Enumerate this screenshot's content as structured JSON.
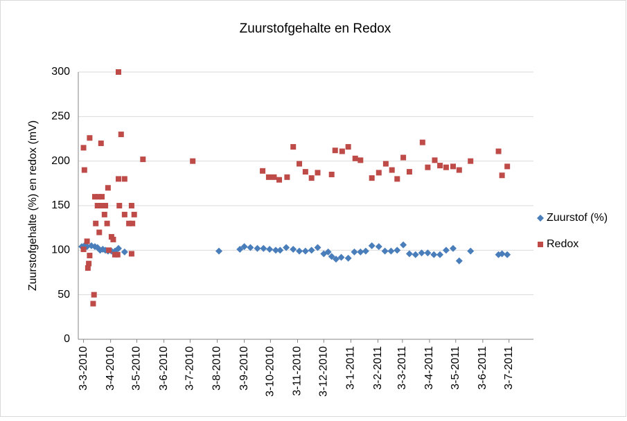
{
  "chart_data": {
    "type": "scatter",
    "title": "Zuurstofgehalte en Redox",
    "y_label": "Zuurstofgehalte (%) en redox (mV)",
    "xlim": [
      "2010-02-25",
      "2011-07-31"
    ],
    "ylim": [
      0,
      300
    ],
    "yticks": [
      0,
      50,
      100,
      150,
      200,
      250,
      300
    ],
    "grid": true,
    "legend": "right",
    "xticks": [
      {
        "value": "2010-03-03",
        "label": "3-3-2010"
      },
      {
        "value": "2010-04-03",
        "label": "3-4-2010"
      },
      {
        "value": "2010-05-03",
        "label": "3-5-2010"
      },
      {
        "value": "2010-06-03",
        "label": "3-6-2010"
      },
      {
        "value": "2010-07-03",
        "label": "3-7-2010"
      },
      {
        "value": "2010-08-03",
        "label": "3-8-2010"
      },
      {
        "value": "2010-09-03",
        "label": "3-9-2010"
      },
      {
        "value": "2010-10-03",
        "label": "3-10-2010"
      },
      {
        "value": "2010-11-03",
        "label": "3-11-2010"
      },
      {
        "value": "2010-12-03",
        "label": "3-12-2010"
      },
      {
        "value": "2011-01-03",
        "label": "3-1-2011"
      },
      {
        "value": "2011-02-03",
        "label": "3-2-2011"
      },
      {
        "value": "2011-03-03",
        "label": "3-3-2011"
      },
      {
        "value": "2011-04-03",
        "label": "3-4-2011"
      },
      {
        "value": "2011-05-03",
        "label": "3-5-2011"
      },
      {
        "value": "2011-06-03",
        "label": "3-6-2011"
      },
      {
        "value": "2011-07-03",
        "label": "3-7-2011"
      }
    ],
    "series": [
      {
        "name": "Zuurstof (%)",
        "color": "#4a7ebb",
        "marker": "diamond",
        "x": [
          "2010-03-01",
          "2010-03-05",
          "2010-03-07",
          "2010-03-12",
          "2010-03-16",
          "2010-03-19",
          "2010-03-22",
          "2010-03-25",
          "2010-03-28",
          "2010-03-31",
          "2010-04-04",
          "2010-04-08",
          "2010-04-12",
          "2010-04-19",
          "2010-08-05",
          "2010-08-29",
          "2010-09-03",
          "2010-09-10",
          "2010-09-18",
          "2010-09-25",
          "2010-10-02",
          "2010-10-09",
          "2010-10-14",
          "2010-10-21",
          "2010-10-29",
          "2010-11-05",
          "2010-11-12",
          "2010-11-19",
          "2010-11-26",
          "2010-12-03",
          "2010-12-08",
          "2010-12-12",
          "2010-12-17",
          "2010-12-23",
          "2010-12-31",
          "2011-01-07",
          "2011-01-14",
          "2011-01-20",
          "2011-01-27",
          "2011-02-04",
          "2011-02-11",
          "2011-02-18",
          "2011-02-25",
          "2011-03-04",
          "2011-03-11",
          "2011-03-18",
          "2011-03-25",
          "2011-04-01",
          "2011-04-08",
          "2011-04-15",
          "2011-04-22",
          "2011-04-30",
          "2011-05-07",
          "2011-05-20",
          "2011-06-21",
          "2011-06-25",
          "2011-07-01"
        ],
        "values": [
          104,
          106,
          104,
          105,
          104,
          103,
          100,
          101,
          100,
          99,
          99,
          99,
          102,
          98,
          99,
          101,
          104,
          103,
          102,
          102,
          101,
          100,
          100,
          103,
          101,
          99,
          99,
          100,
          103,
          96,
          98,
          93,
          90,
          92,
          91,
          98,
          98,
          99,
          105,
          104,
          99,
          99,
          100,
          106,
          96,
          95,
          97,
          97,
          95,
          95,
          100,
          102,
          88,
          99,
          95,
          96,
          95
        ]
      },
      {
        "name": "Redox",
        "color": "#be4b48",
        "marker": "square",
        "x": [
          "2010-03-03",
          "2010-03-04",
          "2010-03-03",
          "2010-03-07",
          "2010-03-08",
          "2010-03-09",
          "2010-03-10",
          "2010-03-10",
          "2010-03-14",
          "2010-03-15",
          "2010-03-16",
          "2010-03-17",
          "2010-03-19",
          "2010-03-20",
          "2010-03-21",
          "2010-03-23",
          "2010-03-24",
          "2010-03-24",
          "2010-03-27",
          "2010-03-28",
          "2010-03-30",
          "2010-03-31",
          "2010-04-01",
          "2010-04-04",
          "2010-04-06",
          "2010-04-08",
          "2010-04-11",
          "2010-04-12",
          "2010-04-12",
          "2010-04-13",
          "2010-04-15",
          "2010-04-19",
          "2010-04-19",
          "2010-04-24",
          "2010-04-27",
          "2010-04-28",
          "2010-04-30",
          "2010-04-27",
          "2010-05-10",
          "2010-07-06",
          "2010-09-24",
          "2010-10-01",
          "2010-10-07",
          "2010-10-13",
          "2010-10-22",
          "2010-10-29",
          "2010-11-05",
          "2010-11-12",
          "2010-11-19",
          "2010-11-26",
          "2010-12-12",
          "2010-12-16",
          "2010-12-24",
          "2010-12-31",
          "2011-01-08",
          "2011-01-14",
          "2011-01-27",
          "2011-02-04",
          "2011-02-12",
          "2011-02-19",
          "2011-02-25",
          "2011-03-04",
          "2011-03-11",
          "2011-03-26",
          "2011-04-01",
          "2011-04-09",
          "2011-04-15",
          "2011-04-22",
          "2011-04-30",
          "2011-05-07",
          "2011-05-20",
          "2011-06-21",
          "2011-06-25",
          "2011-07-01"
        ],
        "values": [
          215,
          190,
          101,
          110,
          80,
          85,
          94,
          226,
          40,
          50,
          160,
          130,
          150,
          160,
          120,
          220,
          160,
          150,
          140,
          150,
          130,
          170,
          100,
          115,
          112,
          95,
          95,
          300,
          180,
          150,
          230,
          180,
          140,
          130,
          150,
          130,
          140,
          96,
          202,
          200,
          189,
          182,
          182,
          179,
          182,
          216,
          197,
          188,
          181,
          187,
          185,
          212,
          211,
          216,
          203,
          201,
          181,
          187,
          197,
          190,
          180,
          204,
          188,
          221,
          193,
          201,
          195,
          193,
          194,
          190,
          200,
          211,
          184,
          194
        ]
      }
    ]
  }
}
